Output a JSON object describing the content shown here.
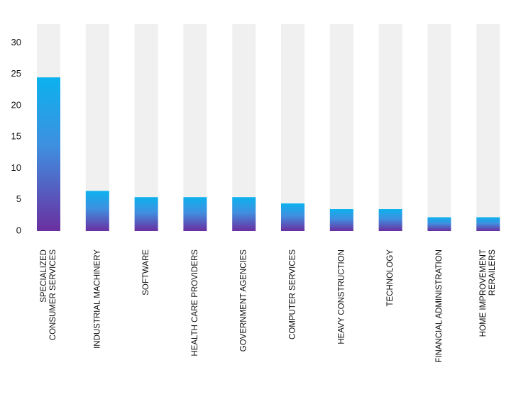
{
  "chart_data": {
    "type": "bar",
    "categories": [
      [
        "SPECIALIZED",
        "CONSUMER SERVICES"
      ],
      [
        "INDUSTRIAL MACHINERY"
      ],
      [
        "SOFTWARE"
      ],
      [
        "HEALTH CARE PROVIDERS"
      ],
      [
        "GOVERNMENT AGENCIES"
      ],
      [
        "COMPUTER SERVICES"
      ],
      [
        "HEAVY CONSTRUCTION"
      ],
      [
        "TECHNOLOGY"
      ],
      [
        "FINANCIAL ADMINISTRATION"
      ],
      [
        "HOME IMPROVEMENT",
        "RERAILERS"
      ]
    ],
    "values": [
      24.5,
      6.4,
      5.4,
      5.4,
      5.4,
      4.4,
      3.5,
      3.5,
      2.2,
      2.2
    ],
    "background_value": 33,
    "ylim": [
      0,
      33
    ],
    "yticks": [
      0,
      5,
      10,
      15,
      20,
      25,
      30
    ],
    "title": "",
    "xlabel": "",
    "ylabel": "",
    "grid": false,
    "legend": "none",
    "colors": {
      "bar_top": "#0cb2ee",
      "bar_bottom": "#6a2fa0",
      "track": "#f0f0f0",
      "text": "#111111"
    }
  }
}
